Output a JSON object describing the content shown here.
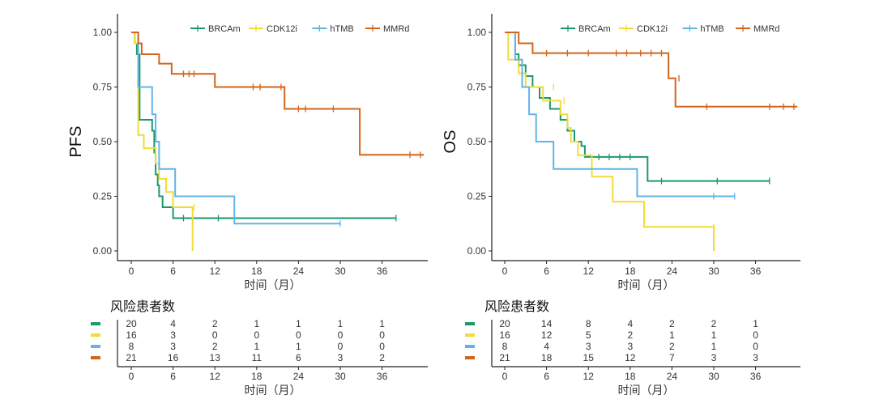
{
  "colors": {
    "BRCAm": "#1a9a6b",
    "CDK12i": "#f0dc3a",
    "hTMB": "#63b3e5",
    "MMRd": "#d2651c",
    "axis": "#222222",
    "text": "#333333"
  },
  "risk_table": {
    "title": "风险患者数",
    "time_points": [
      0,
      6,
      12,
      18,
      24,
      30,
      36
    ],
    "xlabel": "时间（月）"
  },
  "chart_data": [
    {
      "type": "line",
      "subtype": "kaplan-meier",
      "ylabel": "PFS",
      "xlabel": "时间（月）",
      "xlim": [
        -2,
        42
      ],
      "ylim": [
        0,
        1
      ],
      "xticks": [
        0,
        6,
        12,
        18,
        24,
        30,
        36
      ],
      "yticks": [
        "0.00",
        "0.25",
        "0.50",
        "0.75",
        "1.00"
      ],
      "ytick_values": [
        0,
        0.25,
        0.5,
        0.75,
        1
      ],
      "legend_position": "top-right",
      "grid": false,
      "series": [
        {
          "name": "BRCAm",
          "steps": [
            [
              0,
              1.0
            ],
            [
              0.5,
              0.95
            ],
            [
              0.8,
              0.9
            ],
            [
              1.2,
              0.6
            ],
            [
              3.0,
              0.55
            ],
            [
              3.3,
              0.45
            ],
            [
              3.5,
              0.35
            ],
            [
              3.8,
              0.3
            ],
            [
              4.0,
              0.25
            ],
            [
              4.5,
              0.2
            ],
            [
              6.0,
              0.15
            ],
            [
              38,
              0.15
            ]
          ],
          "censored": [
            [
              7.5,
              0.15
            ],
            [
              12.5,
              0.15
            ],
            [
              38,
              0.15
            ]
          ],
          "at_risk": [
            20,
            4,
            2,
            1,
            1,
            1,
            1
          ]
        },
        {
          "name": "CDK12i",
          "steps": [
            [
              0,
              1.0
            ],
            [
              0.5,
              0.95
            ],
            [
              1.0,
              0.53
            ],
            [
              1.8,
              0.47
            ],
            [
              3.5,
              0.4
            ],
            [
              4.0,
              0.33
            ],
            [
              5.0,
              0.27
            ],
            [
              6.0,
              0.2
            ],
            [
              8.8,
              0.0
            ]
          ],
          "censored": [
            [
              9,
              0.2
            ]
          ],
          "at_risk": [
            16,
            3,
            0,
            0,
            0,
            0,
            0
          ]
        },
        {
          "name": "hTMB",
          "steps": [
            [
              0,
              1.0
            ],
            [
              1.0,
              0.75
            ],
            [
              3.0,
              0.625
            ],
            [
              3.5,
              0.5
            ],
            [
              4.0,
              0.375
            ],
            [
              6.3,
              0.25
            ],
            [
              14.8,
              0.125
            ],
            [
              30,
              0.125
            ]
          ],
          "censored": [
            [
              30,
              0.125
            ]
          ],
          "at_risk": [
            8,
            3,
            2,
            1,
            1,
            0,
            0
          ]
        },
        {
          "name": "MMRd",
          "steps": [
            [
              0,
              1.0
            ],
            [
              1.0,
              0.95
            ],
            [
              1.5,
              0.9
            ],
            [
              4.0,
              0.857
            ],
            [
              5.8,
              0.81
            ],
            [
              12.0,
              0.75
            ],
            [
              22.0,
              0.65
            ],
            [
              32.8,
              0.44
            ],
            [
              42,
              0.44
            ]
          ],
          "censored": [
            [
              7.5,
              0.81
            ],
            [
              8.3,
              0.81
            ],
            [
              9.0,
              0.81
            ],
            [
              17.5,
              0.75
            ],
            [
              18.5,
              0.75
            ],
            [
              21.5,
              0.75
            ],
            [
              24.0,
              0.65
            ],
            [
              25.0,
              0.65
            ],
            [
              29.0,
              0.65
            ],
            [
              40.0,
              0.44
            ],
            [
              41.5,
              0.44
            ]
          ],
          "at_risk": [
            21,
            16,
            13,
            11,
            6,
            3,
            2
          ]
        }
      ]
    },
    {
      "type": "line",
      "subtype": "kaplan-meier",
      "ylabel": "OS",
      "xlabel": "时间（月）",
      "xlim": [
        -2,
        42
      ],
      "ylim": [
        0,
        1
      ],
      "xticks": [
        0,
        6,
        12,
        18,
        24,
        30,
        36
      ],
      "yticks": [
        "0.00",
        "0.25",
        "0.50",
        "0.75",
        "1.00"
      ],
      "ytick_values": [
        0,
        0.25,
        0.5,
        0.75,
        1
      ],
      "legend_position": "top-right",
      "grid": false,
      "series": [
        {
          "name": "BRCAm",
          "steps": [
            [
              0,
              1.0
            ],
            [
              1.5,
              0.9
            ],
            [
              2.0,
              0.85
            ],
            [
              3.0,
              0.8
            ],
            [
              4.0,
              0.75
            ],
            [
              5.0,
              0.7
            ],
            [
              6.5,
              0.65
            ],
            [
              8.0,
              0.6
            ],
            [
              9.0,
              0.55
            ],
            [
              10.0,
              0.5
            ],
            [
              11.0,
              0.48
            ],
            [
              11.5,
              0.43
            ],
            [
              20.5,
              0.32
            ],
            [
              38,
              0.32
            ]
          ],
          "censored": [
            [
              13.5,
              0.43
            ],
            [
              15.0,
              0.43
            ],
            [
              16.5,
              0.43
            ],
            [
              18.0,
              0.43
            ],
            [
              22.5,
              0.32
            ],
            [
              30.5,
              0.32
            ],
            [
              38.0,
              0.32
            ]
          ],
          "at_risk": [
            20,
            14,
            8,
            4,
            2,
            2,
            1
          ]
        },
        {
          "name": "CDK12i",
          "steps": [
            [
              0,
              1.0
            ],
            [
              0.5,
              0.875
            ],
            [
              2.0,
              0.8125
            ],
            [
              3.0,
              0.75
            ],
            [
              5.5,
              0.6875
            ],
            [
              8.0,
              0.625
            ],
            [
              9.0,
              0.5625
            ],
            [
              9.5,
              0.5
            ],
            [
              10.5,
              0.4375
            ],
            [
              12.5,
              0.34
            ],
            [
              15.5,
              0.225
            ],
            [
              20.0,
              0.11
            ],
            [
              30.0,
              0.0
            ]
          ],
          "censored": [
            [
              7.0,
              0.75
            ],
            [
              8.5,
              0.6875
            ],
            [
              30,
              0.11
            ]
          ],
          "at_risk": [
            16,
            12,
            5,
            2,
            1,
            1,
            0
          ]
        },
        {
          "name": "hTMB",
          "steps": [
            [
              0,
              1.0
            ],
            [
              1.5,
              0.875
            ],
            [
              2.5,
              0.75
            ],
            [
              3.5,
              0.625
            ],
            [
              4.5,
              0.5
            ],
            [
              7.0,
              0.375
            ],
            [
              19.0,
              0.25
            ],
            [
              33,
              0.25
            ]
          ],
          "censored": [
            [
              30.0,
              0.25
            ],
            [
              33.0,
              0.25
            ]
          ],
          "at_risk": [
            8,
            4,
            3,
            3,
            2,
            1,
            0
          ]
        },
        {
          "name": "MMRd",
          "steps": [
            [
              0,
              1.0
            ],
            [
              2.0,
              0.95
            ],
            [
              4.0,
              0.905
            ],
            [
              23.5,
              0.79
            ],
            [
              24.5,
              0.66
            ],
            [
              42,
              0.66
            ]
          ],
          "censored": [
            [
              6.0,
              0.905
            ],
            [
              9.0,
              0.905
            ],
            [
              12.0,
              0.905
            ],
            [
              16.0,
              0.905
            ],
            [
              17.5,
              0.905
            ],
            [
              19.5,
              0.905
            ],
            [
              21.0,
              0.905
            ],
            [
              22.5,
              0.905
            ],
            [
              25.0,
              0.79
            ],
            [
              29.0,
              0.66
            ],
            [
              38.0,
              0.66
            ],
            [
              40.0,
              0.66
            ],
            [
              41.5,
              0.66
            ]
          ],
          "at_risk": [
            21,
            18,
            15,
            12,
            7,
            3,
            3
          ]
        }
      ]
    }
  ]
}
